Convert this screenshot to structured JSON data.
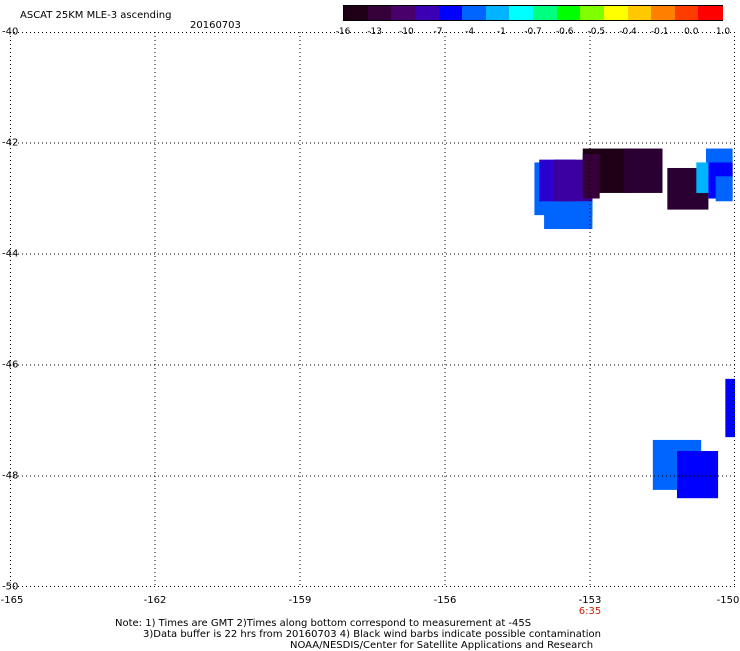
{
  "header": {
    "title": "ASCAT 25KM MLE-3 ascending",
    "date": "20160703"
  },
  "colorbar": {
    "ticks": [
      "-16",
      "-13",
      "-10",
      "-7",
      "-4",
      "-1",
      "-0.7",
      "-0.6",
      "-0.5",
      "-0.4",
      "-0.1",
      "0.0",
      "1.0"
    ],
    "colors": [
      "#1e0016",
      "#35003a",
      "#4a006a",
      "#3c00b4",
      "#0000ff",
      "#0064ff",
      "#00b4ff",
      "#00ffff",
      "#00ff7f",
      "#00ff00",
      "#7fff00",
      "#ffff00",
      "#ffc800",
      "#ff7f00",
      "#ff3c00",
      "#ff0000"
    ]
  },
  "axes": {
    "x_ticks": [
      "-165",
      "-162",
      "-159",
      "-156",
      "-153",
      "-150"
    ],
    "y_ticks": [
      "-40",
      "-42",
      "-44",
      "-46",
      "-48",
      "-50"
    ],
    "x_range": [
      -165,
      -150
    ],
    "y_range": [
      -50,
      -40
    ],
    "grid": "dotted",
    "time_label": "6:35",
    "time_label_lon": -153
  },
  "cells": [
    {
      "lon0": -154.15,
      "lon1": -152.95,
      "lat0": -43.3,
      "lat1": -42.35,
      "color": "#0064ff"
    },
    {
      "lon0": -153.95,
      "lon1": -152.95,
      "lat0": -43.55,
      "lat1": -42.75,
      "color": "#0064ff"
    },
    {
      "lon0": -154.05,
      "lon1": -153.3,
      "lat0": -43.05,
      "lat1": -42.3,
      "color": "#2a00d0"
    },
    {
      "lon0": -153.75,
      "lon1": -152.95,
      "lat0": -43.05,
      "lat1": -42.3,
      "color": "#3c00a0"
    },
    {
      "lon0": -153.15,
      "lon1": -152.15,
      "lat0": -42.9,
      "lat1": -42.1,
      "color": "#1e0016"
    },
    {
      "lon0": -152.3,
      "lon1": -151.5,
      "lat0": -42.9,
      "lat1": -42.1,
      "color": "#2a0032"
    },
    {
      "lon0": -153.15,
      "lon1": -152.8,
      "lat0": -43.0,
      "lat1": -42.2,
      "color": "#35003a"
    },
    {
      "lon0": -151.4,
      "lon1": -150.55,
      "lat0": -43.2,
      "lat1": -42.45,
      "color": "#2a0032"
    },
    {
      "lon0": -150.6,
      "lon1": -150.05,
      "lat0": -42.6,
      "lat1": -42.1,
      "color": "#0064ff"
    },
    {
      "lon0": -150.8,
      "lon1": -150.25,
      "lat0": -42.9,
      "lat1": -42.35,
      "color": "#00b4ff"
    },
    {
      "lon0": -150.55,
      "lon1": -150.05,
      "lat0": -43.0,
      "lat1": -42.35,
      "color": "#0000ff"
    },
    {
      "lon0": -150.4,
      "lon1": -150.05,
      "lat0": -43.05,
      "lat1": -42.6,
      "color": "#0064ff"
    },
    {
      "lon0": -150.2,
      "lon1": -149.6,
      "lat0": -47.3,
      "lat1": -46.25,
      "color": "#0000ff"
    },
    {
      "lon0": -151.7,
      "lon1": -150.7,
      "lat0": -48.25,
      "lat1": -47.35,
      "color": "#0064ff"
    },
    {
      "lon0": -151.2,
      "lon1": -150.35,
      "lat0": -48.4,
      "lat1": -47.55,
      "color": "#0000ff"
    }
  ],
  "notes": {
    "line1": "Note: 1) Times are GMT 2)Times along bottom correspond to measurement at -45S",
    "line2": "3)Data buffer is 22 hrs from 20160703 4) Black wind barbs indicate possible contamination",
    "line3": "NOAA/NESDIS/Center for Satellite Applications and Research"
  }
}
